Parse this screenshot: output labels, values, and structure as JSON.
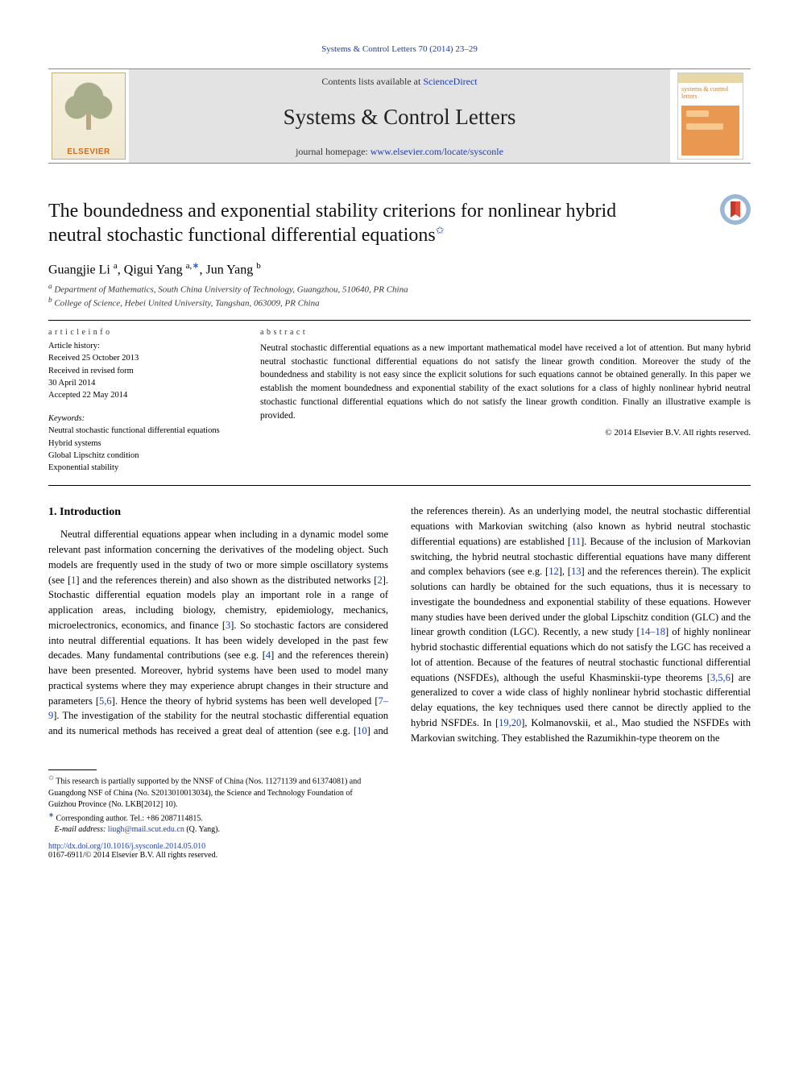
{
  "running_head": "Systems & Control Letters 70 (2014) 23–29",
  "masthead": {
    "contents_prefix": "Contents lists available at ",
    "contents_link": "ScienceDirect",
    "journal_title": "Systems & Control Letters",
    "homepage_prefix": "journal homepage: ",
    "homepage_link": "www.elsevier.com/locate/sysconle",
    "elsevier_brand": "ELSEVIER",
    "cover_title": "systems & control letters"
  },
  "article": {
    "title_pre": "The boundedness and exponential stability criterions for nonlinear hybrid neutral stochastic functional differential equations",
    "title_sup": "✩",
    "authors_html": "Guangjie Li <sup>a</sup>, Qigui Yang <sup>a,</sup><sup class=\"corr\">∗</sup>, Jun Yang <sup>b</sup>",
    "affiliations": [
      "a Department of Mathematics, South China University of Technology, Guangzhou, 510640, PR China",
      "b College of Science, Hebei United University, Tangshan, 063009, PR China"
    ]
  },
  "info": {
    "article_info_hdr": "a r t i c l e    i n f o",
    "history": [
      "Article history:",
      "Received 25 October 2013",
      "Received in revised form",
      "30 April 2014",
      "Accepted 22 May 2014"
    ],
    "keywords_hdr": "Keywords:",
    "keywords": [
      "Neutral stochastic functional differential equations",
      "Hybrid systems",
      "Global Lipschitz condition",
      "Exponential stability"
    ]
  },
  "abstract": {
    "hdr": "a b s t r a c t",
    "text": "Neutral stochastic differential equations as a new important mathematical model have received a lot of attention. But many hybrid neutral stochastic functional differential equations do not satisfy the linear growth condition. Moreover the study of the boundedness and stability is not easy since the explicit solutions for such equations cannot be obtained generally. In this paper we establish the moment boundedness and exponential stability of the exact solutions for a class of highly nonlinear hybrid neutral stochastic functional differential equations which do not satisfy the linear growth condition. Finally an illustrative example is provided.",
    "copyright": "© 2014 Elsevier B.V. All rights reserved."
  },
  "section1": {
    "heading": "1. Introduction",
    "body": "Neutral differential equations appear when including in a dynamic model some relevant past information concerning the derivatives of the modeling object. Such models are frequently used in the study of two or more simple oscillatory systems (see [1] and the references therein) and also shown as the distributed networks [2]. Stochastic differential equation models play an important role in a range of application areas, including biology, chemistry, epidemiology, mechanics, microelectronics, economics, and finance [3]. So stochastic factors are considered into neutral differential equations. It has been widely developed in the past few decades. Many fundamental contributions (see e.g. [4] and the references therein) have been presented. Moreover, hybrid systems have been used to model many practical systems where they may experience abrupt changes in their structure and parameters [5,6]. Hence the theory of hybrid systems has been well developed [7–9]. The investigation of the stability for the neutral stochastic differential equation and its numerical methods has received a great deal of attention (see e.g. [10] and the references therein). As an underlying model, the neutral stochastic differential equations with Markovian switching (also known as hybrid neutral stochastic differential equations) are established [11]. Because of the inclusion of Markovian switching, the hybrid neutral stochastic differential equations have many different and complex behaviors (see e.g. [12], [13] and the references therein). The explicit solutions can hardly be obtained for the such equations, thus it is necessary to investigate the boundedness and exponential stability of these equations. However many studies have been derived under the global Lipschitz condition (GLC) and the linear growth condition (LGC). Recently, a new study [14–18] of highly nonlinear hybrid stochastic differential equations which do not satisfy the LGC has received a lot of attention. Because of the features of neutral stochastic functional differential equations (NSFDEs), although the useful Khasminskii-type theorems [3,5,6] are generalized to cover a wide class of highly nonlinear hybrid stochastic differential delay equations, the key techniques used there cannot be directly applied to the hybrid NSFDEs. In [19,20], Kolmanovskii, et al., Mao studied the NSFDEs with Markovian switching. They established the Razumikhin-type theorem on the"
  },
  "footnotes": {
    "funding_sup": "✩",
    "funding": " This research is partially supported by the NNSF of China (Nos. 11271139 and 61374081) and Guangdong NSF of China (No. S2013010013034), the Science and Technology Foundation of Guizhou Province (No. LKB[2012] 10).",
    "corr_sup": "∗",
    "corresponding": " Corresponding author. Tel.: +86 2087114815.",
    "email_label": "E-mail address: ",
    "email": "liugh@mail.scut.edu.cn",
    "email_suffix": " (Q. Yang)."
  },
  "doi": {
    "link": "http://dx.doi.org/10.1016/j.sysconle.2014.05.010",
    "line2": "0167-6911/© 2014 Elsevier B.V. All rights reserved."
  },
  "colors": {
    "link": "#1a3db8",
    "masthead_bg": "#e3e3e3"
  }
}
